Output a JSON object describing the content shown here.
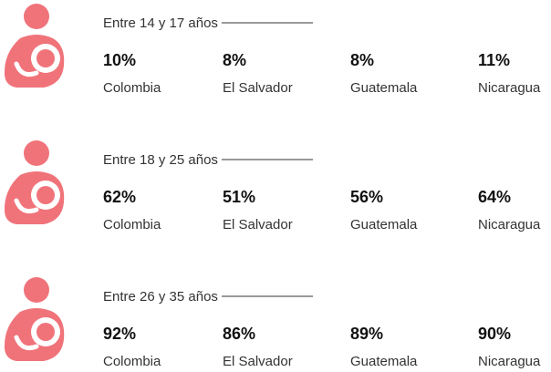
{
  "groups": [
    {
      "label": "Entre 14 y 17 años",
      "items": [
        {
          "value": "10%",
          "country": "Colombia"
        },
        {
          "value": "8%",
          "country": "El Salvador"
        },
        {
          "value": "8%",
          "country": "Guatemala"
        },
        {
          "value": "11%",
          "country": "Nicaragua"
        }
      ]
    },
    {
      "label": "Entre 18 y 25 años",
      "items": [
        {
          "value": "62%",
          "country": "Colombia"
        },
        {
          "value": "51%",
          "country": "El Salvador"
        },
        {
          "value": "56%",
          "country": "Guatemala"
        },
        {
          "value": "64%",
          "country": "Nicaragua"
        }
      ]
    },
    {
      "label": "Entre 26 y 35 años",
      "items": [
        {
          "value": "92%",
          "country": "Colombia"
        },
        {
          "value": "86%",
          "country": "El Salvador"
        },
        {
          "value": "89%",
          "country": "Guatemala"
        },
        {
          "value": "90%",
          "country": "Nicaragua"
        }
      ]
    }
  ]
}
